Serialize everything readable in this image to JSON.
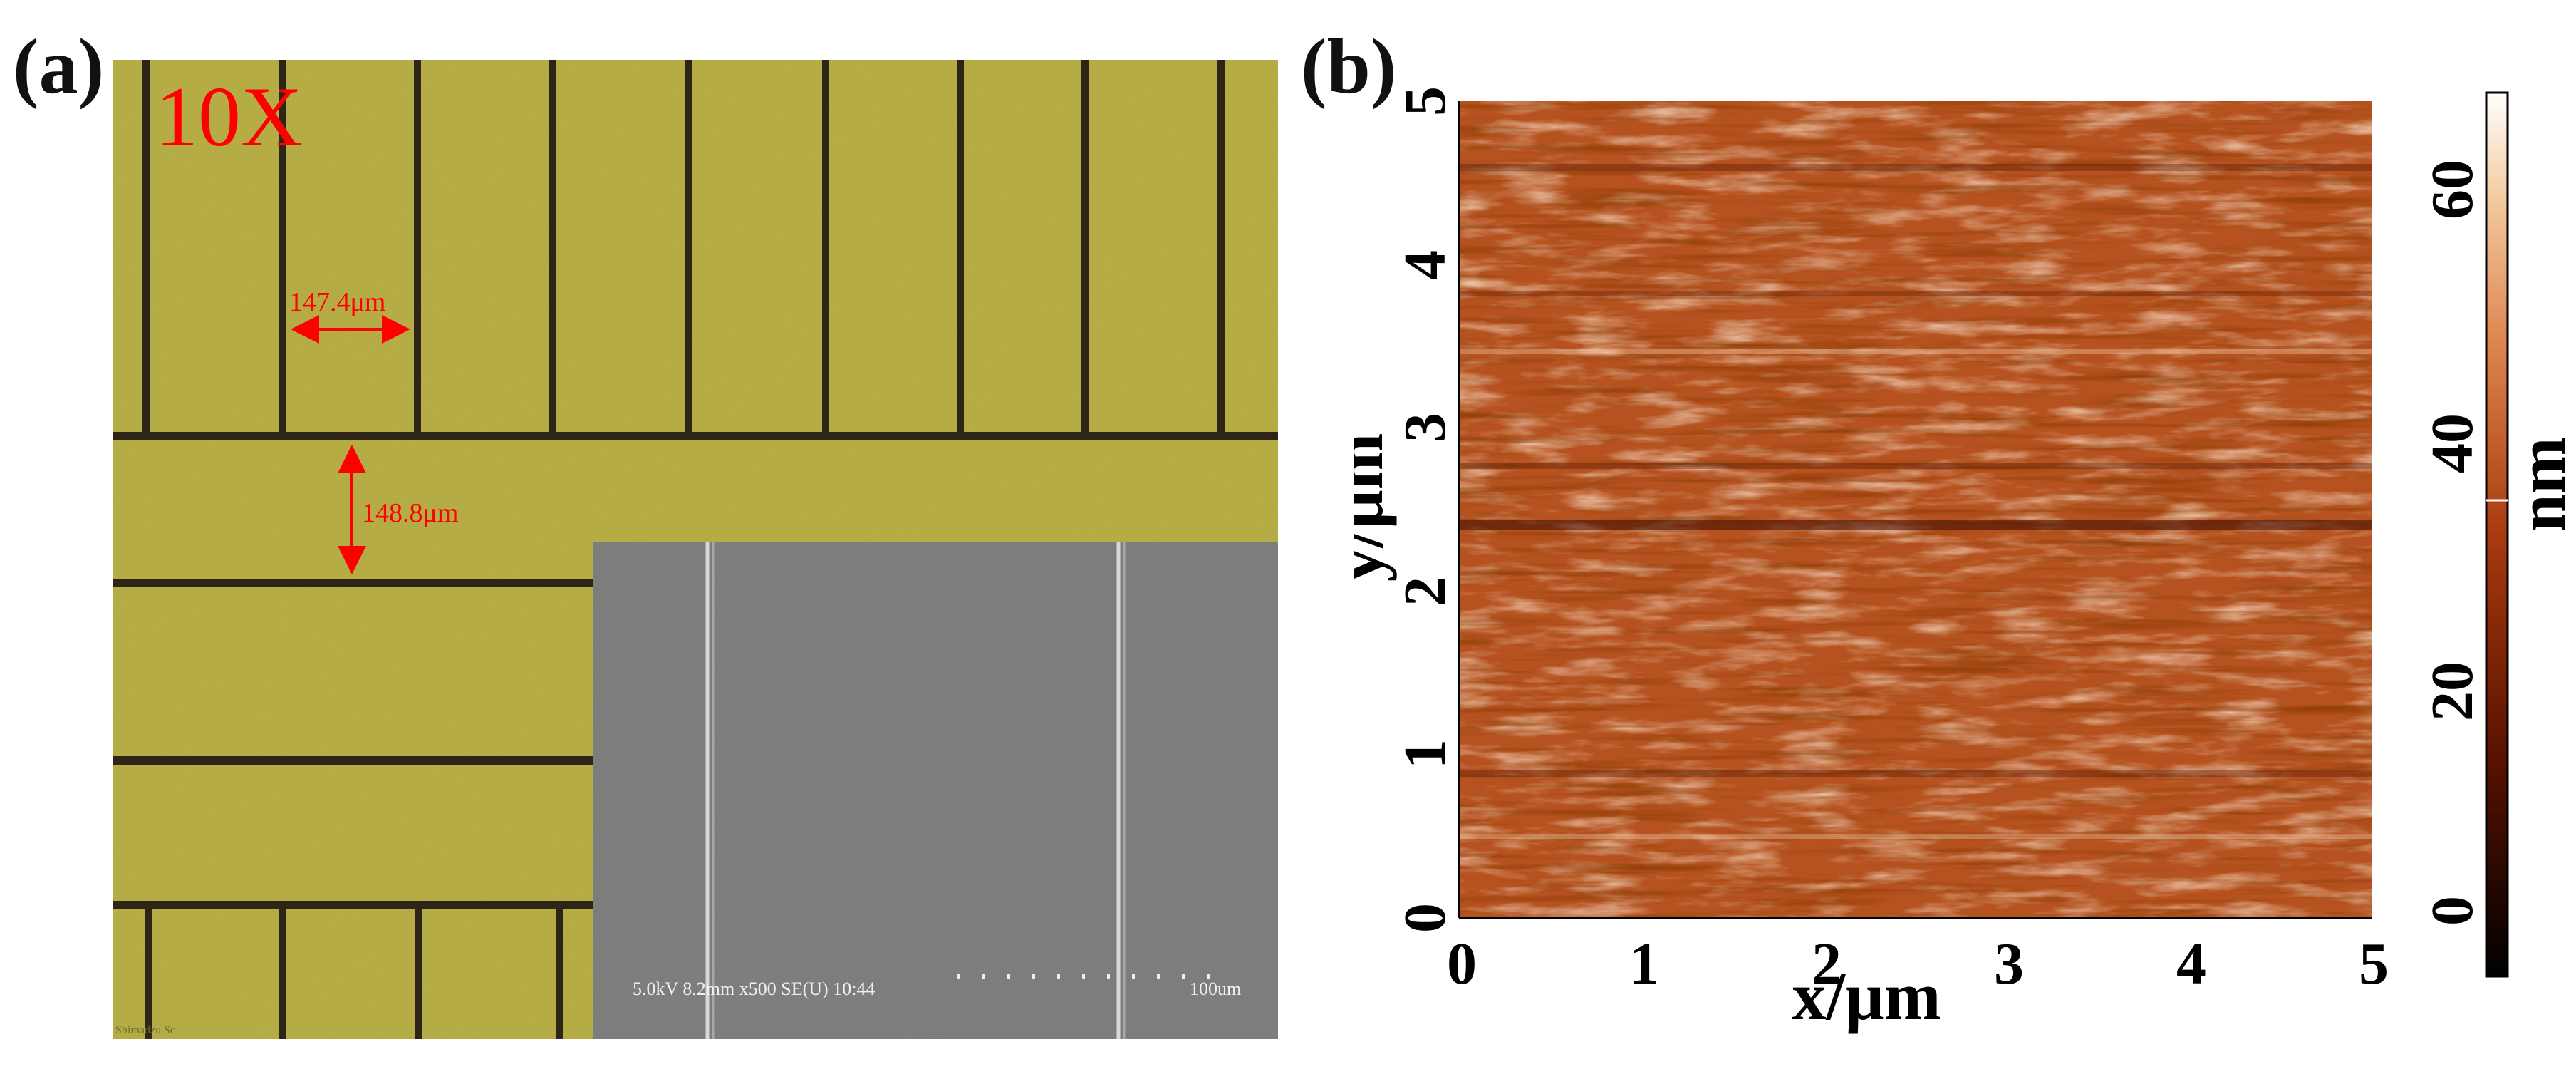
{
  "panel_a": {
    "label": "(a)",
    "magnification": "10X",
    "measurement_horizontal": "147.4μm",
    "measurement_vertical": "148.8μm",
    "microscope_stamp": "Shimadzu Sc",
    "sem_inset": {
      "info": "5.0kV 8.2mm x500 SE(U) 10:44",
      "scale_bar": "100um"
    }
  },
  "panel_b": {
    "label": "(b)",
    "x_axis_label": "x/μm",
    "y_axis_label": "y/μm",
    "colorbar_label": "nm",
    "x_ticks": [
      "0",
      "1",
      "2",
      "3",
      "4",
      "5"
    ],
    "y_ticks": [
      "0",
      "1",
      "2",
      "3",
      "4",
      "5"
    ],
    "colorbar_ticks": [
      "0",
      "20",
      "40",
      "60"
    ]
  },
  "colors": {
    "optical_background": "#bdb348",
    "grid_line": "#2d2618",
    "annotation_red": "#ff0000",
    "sem_gray": "#7a7a7a",
    "afm_dark": "#3a0a00",
    "afm_mid": "#b24a1c",
    "afm_light": "#f6d9b6"
  }
}
